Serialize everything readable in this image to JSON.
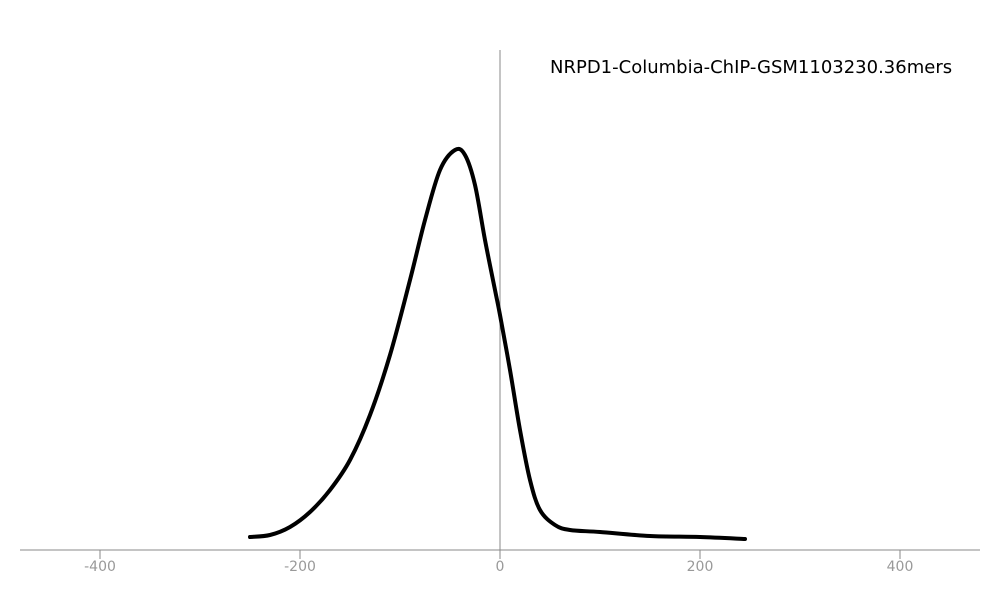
{
  "chart_data": {
    "type": "line",
    "title": "NRPD1-Columbia-ChIP-GSM1103230.36mers",
    "x": [
      -250,
      -230,
      -210,
      -190,
      -170,
      -150,
      -130,
      -110,
      -90,
      -75,
      -60,
      -45,
      -35,
      -25,
      -15,
      -5,
      0,
      10,
      20,
      30,
      40,
      55,
      70,
      100,
      150,
      200,
      245
    ],
    "values": [
      0.026,
      0.03,
      0.046,
      0.076,
      0.12,
      0.18,
      0.27,
      0.39,
      0.54,
      0.66,
      0.76,
      0.8,
      0.79,
      0.73,
      0.62,
      0.52,
      0.47,
      0.36,
      0.24,
      0.14,
      0.08,
      0.05,
      0.04,
      0.036,
      0.028,
      0.026,
      0.022
    ],
    "color": "#000000",
    "xlim": [
      -480,
      480
    ],
    "xticks": [
      -400,
      -200,
      0,
      200,
      400
    ],
    "ylim": [
      0,
      1
    ]
  }
}
